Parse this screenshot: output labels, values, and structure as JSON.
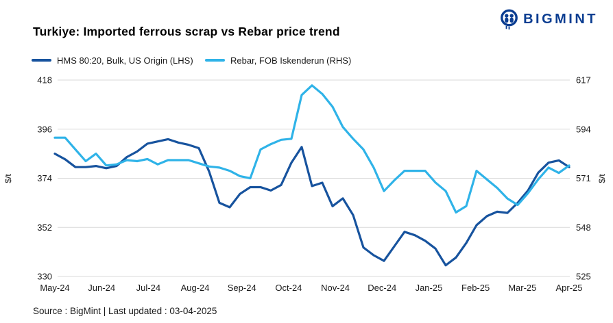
{
  "brand": {
    "name": "BIGMINT",
    "color": "#0B3D91"
  },
  "footer": {
    "text": "Source : BigMint | Last updated : 03-04-2025"
  },
  "chart_data": {
    "type": "line",
    "title": "Turkiye: Imported ferrous scrap vs Rebar price trend",
    "grid": "horizontal",
    "grid_color": "#D9D9D9",
    "legend_position": "top-left",
    "x_tick_labels": [
      "May-24",
      "Jun-24",
      "Jul-24",
      "Aug-24",
      "Sep-24",
      "Oct-24",
      "Nov-24",
      "Dec-24",
      "Jan-25",
      "Feb-25",
      "Mar-25",
      "Apr-25"
    ],
    "left_axis": {
      "unit": "$/t",
      "ticks": [
        418,
        396,
        374,
        352,
        330
      ],
      "range": [
        330,
        418
      ]
    },
    "right_axis": {
      "unit": "$/t",
      "ticks": [
        617,
        594,
        571,
        548,
        525
      ],
      "range": [
        525,
        617
      ]
    },
    "series": [
      {
        "name": "HMS 80:20, Bulk, US Origin (LHS)",
        "axis": "left",
        "color": "#17539E",
        "values": [
          385,
          382.5,
          379,
          379,
          379.5,
          378.5,
          379.5,
          383.5,
          386,
          389.5,
          390.5,
          391.5,
          390,
          389,
          387.5,
          377,
          363,
          361,
          367,
          370,
          370,
          368.5,
          371,
          381,
          388,
          370.5,
          372,
          361.5,
          365,
          357.5,
          343,
          339.5,
          337,
          343.5,
          350,
          348.5,
          346,
          342.5,
          335,
          338.5,
          345,
          353,
          357,
          359,
          358.5,
          363,
          368.5,
          376.5,
          381,
          382,
          379
        ]
      },
      {
        "name": "Rebar, FOB Iskenderun (RHS)",
        "axis": "right",
        "color": "#2FB3E8",
        "values": [
          590,
          590,
          584.5,
          579,
          582.5,
          577,
          577.5,
          579.5,
          579,
          580,
          577.5,
          579.5,
          579.5,
          579.5,
          578,
          576.5,
          576,
          574.5,
          572,
          571,
          584.5,
          587,
          589,
          589.5,
          610,
          614.5,
          610.5,
          604.5,
          595,
          589.5,
          584.5,
          576,
          565,
          570,
          574.5,
          574.5,
          574.5,
          569,
          565,
          555,
          558,
          574.5,
          570.5,
          566.5,
          561.5,
          558.5,
          564,
          570.5,
          576,
          573.5,
          577
        ]
      }
    ]
  }
}
